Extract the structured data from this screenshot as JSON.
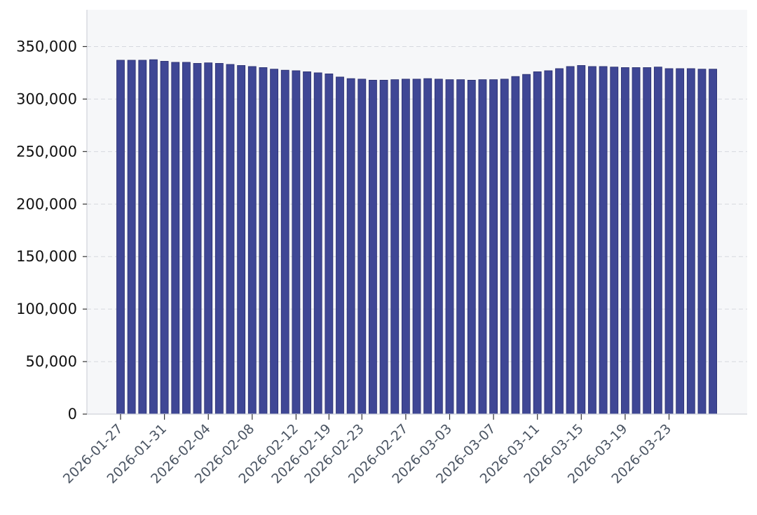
{
  "chart_data": {
    "type": "bar",
    "categories": [
      "2026-01-27",
      "2026-01-28",
      "2026-01-29",
      "2026-01-30",
      "2026-01-31",
      "2026-02-01",
      "2026-02-02",
      "2026-02-03",
      "2026-02-04",
      "2026-02-05",
      "2026-02-06",
      "2026-02-07",
      "2026-02-08",
      "2026-02-09",
      "2026-02-10",
      "2026-02-11",
      "2026-02-12",
      "2026-02-13",
      "2026-02-14",
      "2026-02-19",
      "2026-02-20",
      "2026-02-21",
      "2026-02-23",
      "2026-02-24",
      "2026-02-25",
      "2026-02-26",
      "2026-02-27",
      "2026-02-28",
      "2026-03-01",
      "2026-03-02",
      "2026-03-03",
      "2026-03-04",
      "2026-03-05",
      "2026-03-06",
      "2026-03-07",
      "2026-03-08",
      "2026-03-09",
      "2026-03-10",
      "2026-03-11",
      "2026-03-12",
      "2026-03-13",
      "2026-03-14",
      "2026-03-15",
      "2026-03-16",
      "2026-03-17",
      "2026-03-18",
      "2026-03-19",
      "2026-03-20",
      "2026-03-21",
      "2026-03-22",
      "2026-03-23",
      "2026-03-24",
      "2026-03-25",
      "2026-03-26",
      "2026-03-27"
    ],
    "values": [
      337000,
      337000,
      337000,
      337500,
      336000,
      335000,
      335000,
      334000,
      334500,
      334000,
      333000,
      332000,
      331000,
      330000,
      328500,
      327500,
      327000,
      326000,
      325000,
      324000,
      321000,
      319500,
      319000,
      318000,
      318000,
      318500,
      319000,
      319000,
      319500,
      319000,
      318500,
      318500,
      318000,
      318500,
      318500,
      319000,
      321500,
      323500,
      326000,
      327000,
      329000,
      331000,
      332000,
      331000,
      331000,
      330500,
      330000,
      330000,
      330000,
      330500,
      329000,
      329000,
      329000,
      328500,
      328500
    ],
    "xticks": [
      "2026-01-27",
      "2026-01-31",
      "2026-02-04",
      "2026-02-08",
      "2026-02-12",
      "2026-02-19",
      "2026-02-23",
      "2026-02-27",
      "2026-03-03",
      "2026-03-07",
      "2026-03-11",
      "2026-03-15",
      "2026-03-19",
      "2026-03-23"
    ],
    "yticks": [
      0,
      50000,
      100000,
      150000,
      200000,
      250000,
      300000,
      350000
    ],
    "ylim": [
      0,
      385000
    ],
    "title": "",
    "xlabel": "",
    "ylabel": "",
    "grid": "horizontal-dashed",
    "legend": "none",
    "colors": {
      "bar_fill": "#3f4795",
      "bar_edge": "#2a2f6e",
      "plot_bg": "#f6f7f9",
      "grid": "#d6d8de",
      "axis": "#d0d3da"
    }
  }
}
